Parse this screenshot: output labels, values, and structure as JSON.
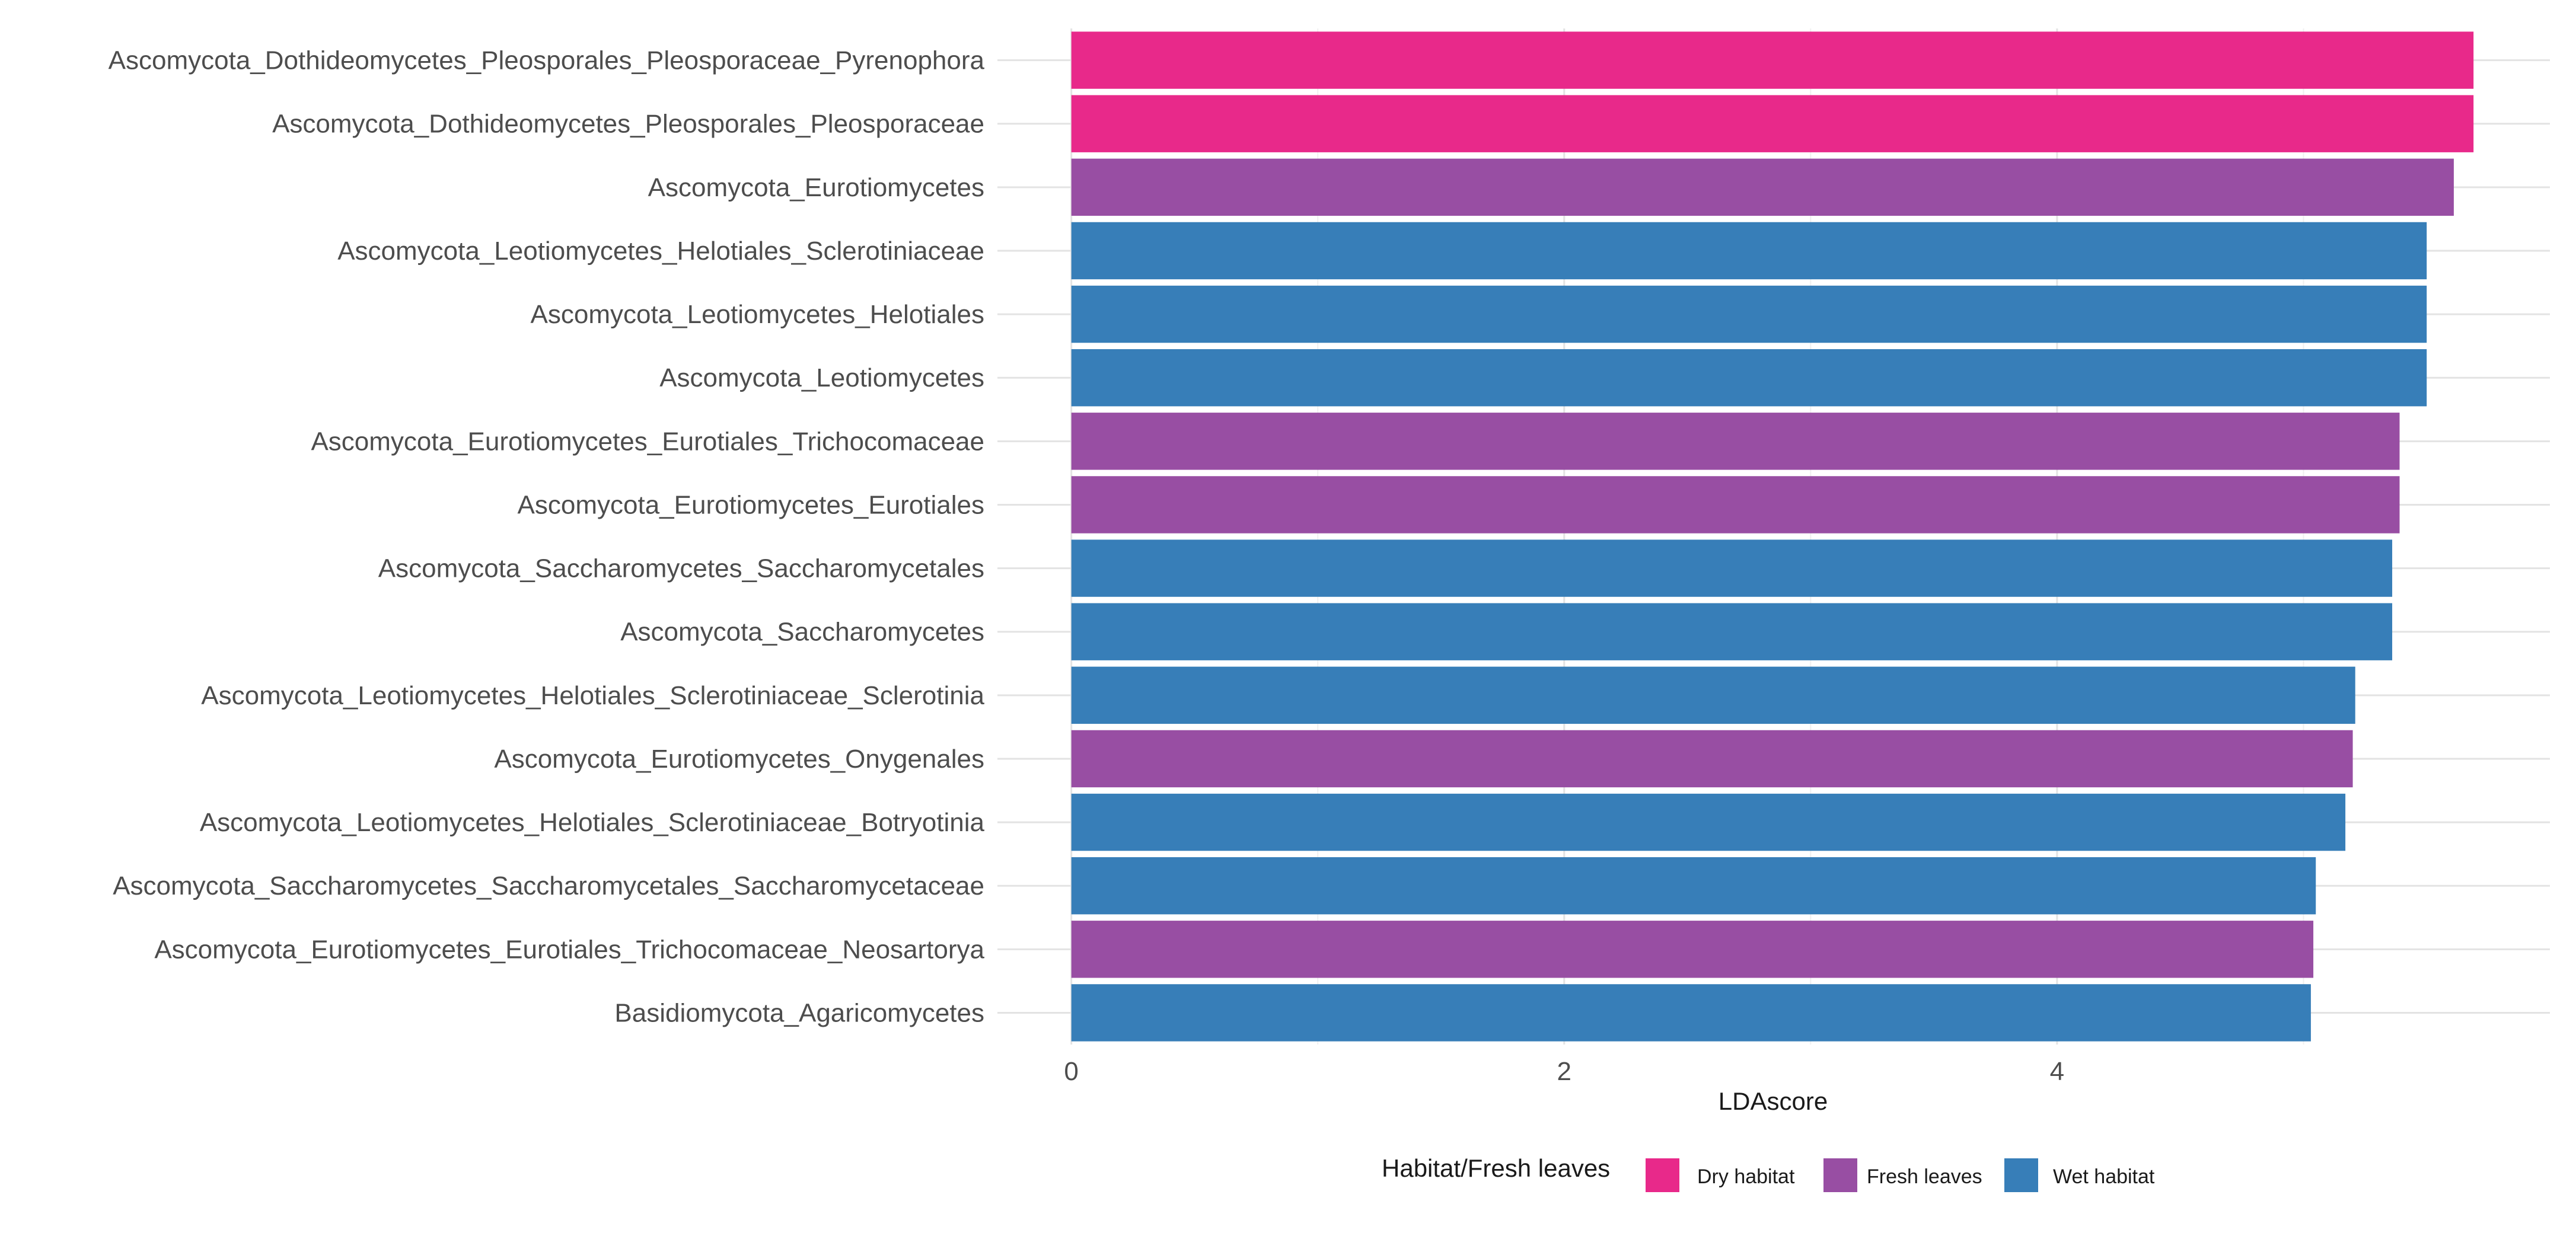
{
  "chart_data": {
    "type": "bar",
    "orientation": "horizontal",
    "title": "",
    "xlabel": "LDAscore",
    "ylabel": "",
    "xlim": [
      -0.3,
      6.0
    ],
    "xticks": [
      0,
      2,
      4
    ],
    "grid": true,
    "legend_position": "bottom",
    "legend_title": "Habitat/Fresh leaves",
    "groups": [
      {
        "name": "Dry habitat",
        "color": "#E8298A"
      },
      {
        "name": "Fresh leaves",
        "color": "#984EA3"
      },
      {
        "name": "Wet habitat",
        "color": "#377EB8"
      }
    ],
    "categories": [
      "Ascomycota_Dothideomycetes_Pleosporales_Pleosporaceae_Pyrenophora",
      "Ascomycota_Dothideomycetes_Pleosporales_Pleosporaceae",
      "Ascomycota_Eurotiomycetes",
      "Ascomycota_Leotiomycetes_Helotiales_Sclerotiniaceae",
      "Ascomycota_Leotiomycetes_Helotiales",
      "Ascomycota_Leotiomycetes",
      "Ascomycota_Eurotiomycetes_Eurotiales_Trichocomaceae",
      "Ascomycota_Eurotiomycetes_Eurotiales",
      "Ascomycota_Saccharomycetes_Saccharomycetales",
      "Ascomycota_Saccharomycetes",
      "Ascomycota_Leotiomycetes_Helotiales_Sclerotiniaceae_Sclerotinia",
      "Ascomycota_Eurotiomycetes_Onygenales",
      "Ascomycota_Leotiomycetes_Helotiales_Sclerotiniaceae_Botryotinia",
      "Ascomycota_Saccharomycetes_Saccharomycetales_Saccharomycetaceae",
      "Ascomycota_Eurotiomycetes_Eurotiales_Trichocomaceae_Neosartorya",
      "Basidiomycota_Agaricomycetes"
    ],
    "values": [
      5.69,
      5.69,
      5.61,
      5.5,
      5.5,
      5.5,
      5.39,
      5.39,
      5.36,
      5.36,
      5.21,
      5.2,
      5.17,
      5.05,
      5.04,
      5.03
    ],
    "group_of_each": [
      "Dry habitat",
      "Dry habitat",
      "Fresh leaves",
      "Wet habitat",
      "Wet habitat",
      "Wet habitat",
      "Fresh leaves",
      "Fresh leaves",
      "Wet habitat",
      "Wet habitat",
      "Wet habitat",
      "Fresh leaves",
      "Wet habitat",
      "Wet habitat",
      "Fresh leaves",
      "Wet habitat"
    ]
  }
}
